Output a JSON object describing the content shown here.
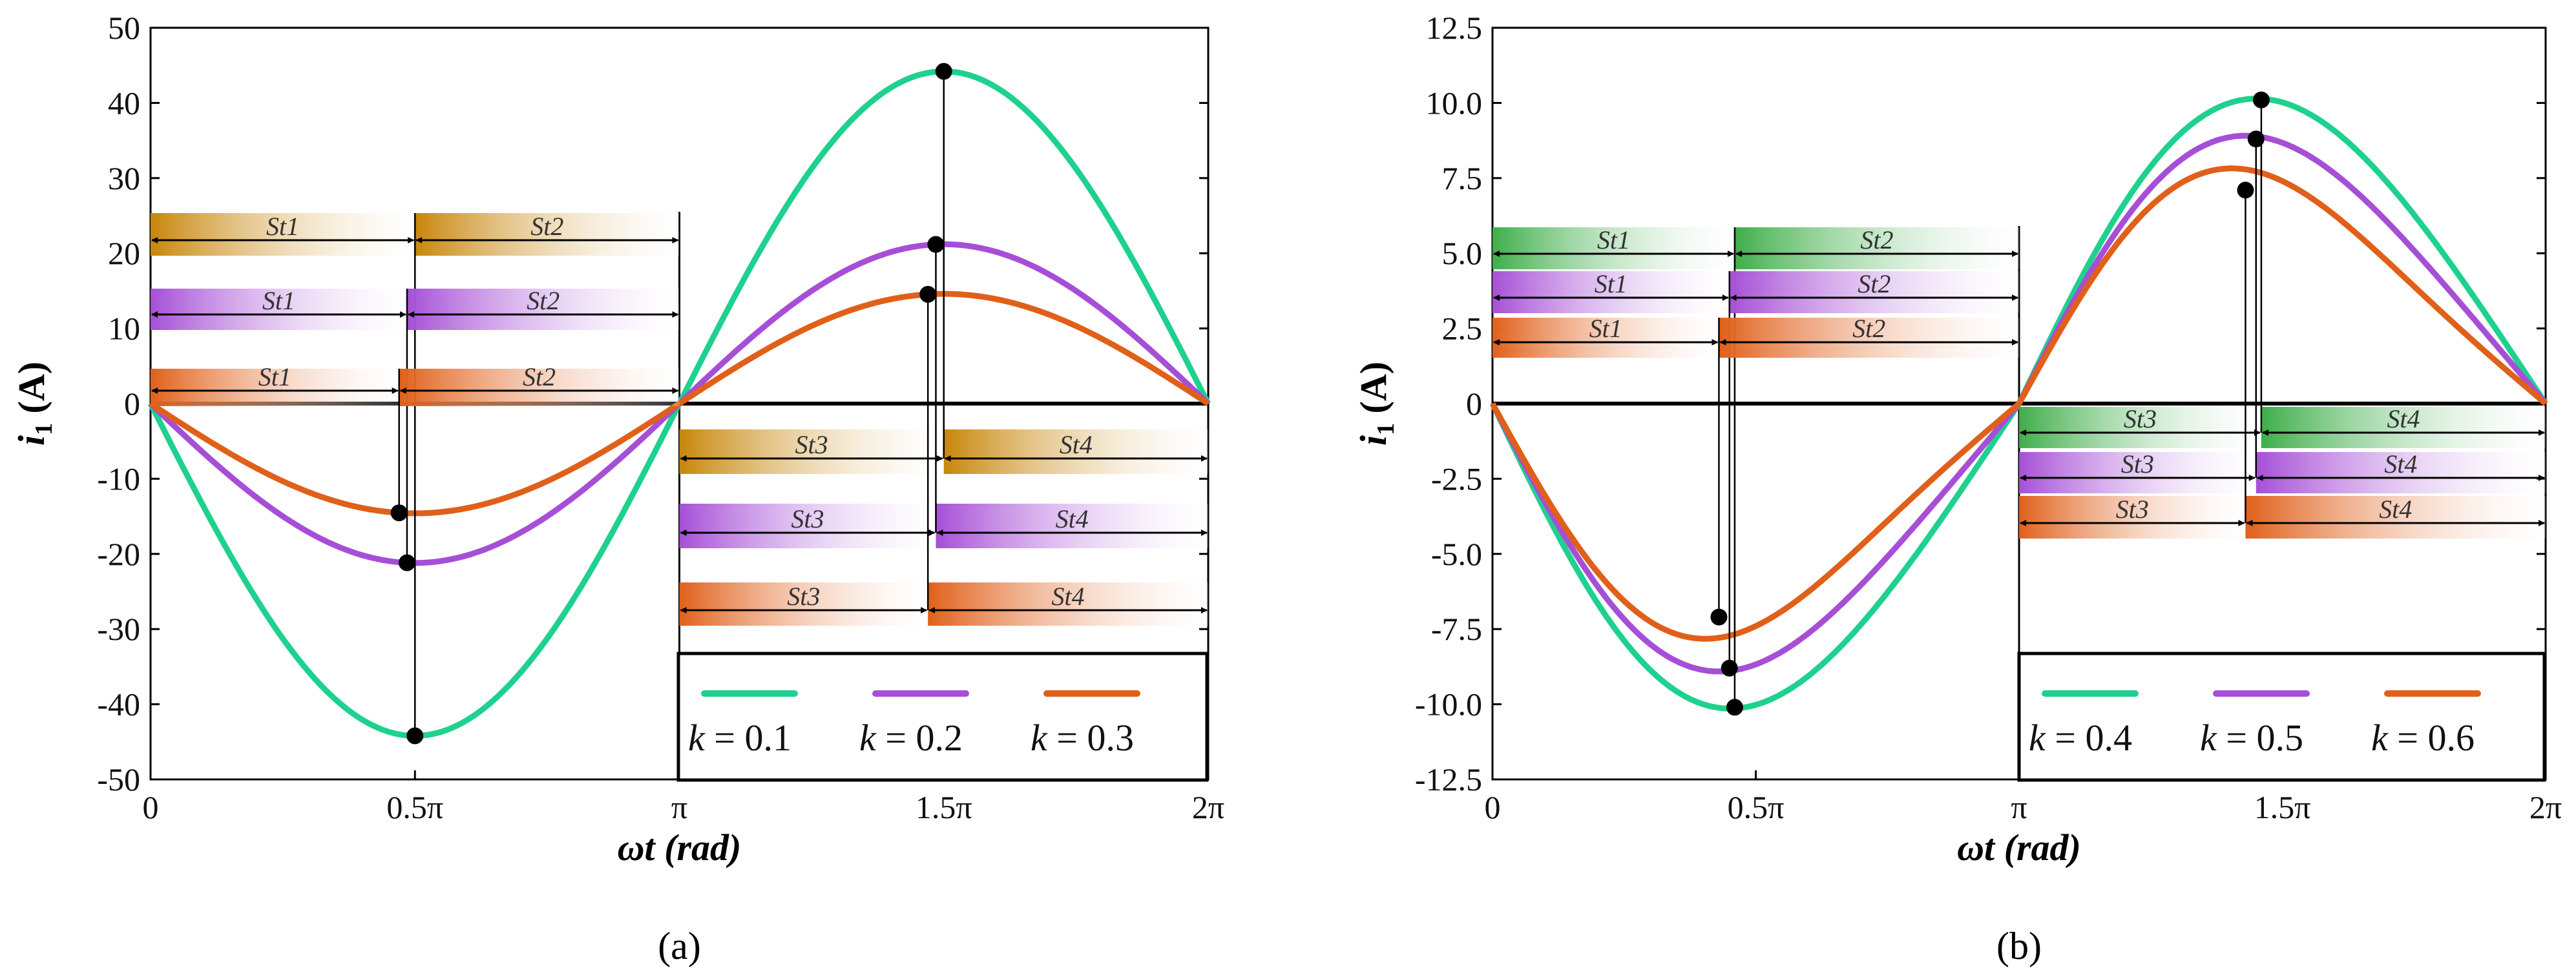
{
  "chart_data": [
    {
      "id": "a",
      "type": "line",
      "caption": "(a)",
      "ylabel_main": "i",
      "ylabel_sub": "1",
      "ylabel_unit": "(A)",
      "xlabel_main": "ωt",
      "xlabel_unit": "(rad)",
      "xlim": [
        0,
        6.2832
      ],
      "ylim": [
        -50,
        50
      ],
      "yticks": [
        50,
        40,
        30,
        20,
        10,
        0,
        -10,
        -20,
        -30,
        -40,
        -50
      ],
      "ytick_labels": [
        "50",
        "40",
        "30",
        "20",
        "10",
        "0",
        "-10",
        "-20",
        "-30",
        "-40",
        "-50"
      ],
      "xtick_labels": [
        "0",
        "0.5π",
        "π",
        "1.5π",
        "2π"
      ],
      "series": [
        {
          "name": "k = 0.1",
          "k_label": "k",
          "k_value": "= 0.1",
          "color": "#1fd18e",
          "peak": 44.2,
          "marker_x_frac": 0.5
        },
        {
          "name": "k = 0.2",
          "k_label": "k",
          "k_value": "= 0.2",
          "color": "#a64fd6",
          "peak": 21.2,
          "marker_x_frac": 0.485
        },
        {
          "name": "k = 0.3",
          "k_label": "k",
          "k_value": "= 0.3",
          "color": "#e0601a",
          "peak": 14.6,
          "marker_x_frac": 0.47
        }
      ],
      "segment_labels": {
        "st1": "St1",
        "st2": "St2",
        "st3": "St3",
        "st4": "St4"
      }
    },
    {
      "id": "b",
      "type": "line",
      "caption": "(b)",
      "ylabel_main": "i",
      "ylabel_sub": "1",
      "ylabel_unit": "(A)",
      "xlabel_main": "ωt",
      "xlabel_unit": "(rad)",
      "xlim": [
        0,
        6.2832
      ],
      "ylim": [
        -12.5,
        12.5
      ],
      "yticks": [
        12.5,
        10,
        7.5,
        5,
        2.5,
        0,
        -2.5,
        -5,
        -7.5,
        -10,
        -12.5
      ],
      "ytick_labels": [
        "12.5",
        "10.0",
        "7.5",
        "5.0",
        "2.5",
        "0",
        "-2.5",
        "-5.0",
        "-7.5",
        "-10.0",
        "-12.5"
      ],
      "xtick_labels": [
        "0",
        "0.5π",
        "π",
        "1.5π",
        "2π"
      ],
      "series": [
        {
          "name": "k = 0.4",
          "k_label": "k",
          "k_value": "= 0.4",
          "color": "#1fd18e",
          "peak": 10.5,
          "skew": 0.08,
          "marker_x_frac": 0.46,
          "marker_y": 10.1
        },
        {
          "name": "k = 0.5",
          "k_label": "k",
          "k_value": "= 0.5",
          "color": "#a64fd6",
          "peak": 9.3,
          "skew": 0.12,
          "marker_x_frac": 0.45,
          "marker_y": 8.8
        },
        {
          "name": "k = 0.6",
          "k_label": "k",
          "k_value": "= 0.6",
          "color": "#e0601a",
          "peak": 8.2,
          "skew": 0.18,
          "marker_x_frac": 0.43,
          "marker_y": 7.1
        }
      ],
      "segment_labels": {
        "st1": "St1",
        "st2": "St2",
        "st3": "St3",
        "st4": "St4"
      }
    }
  ]
}
